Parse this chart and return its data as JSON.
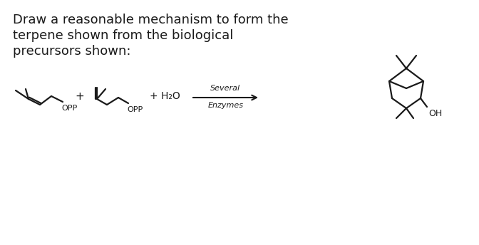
{
  "title_line1": "Draw a reasonable mechanism to form the",
  "title_line2": "terpene shown from the biological",
  "title_line3": "precursors shown:",
  "plus_sign": "+",
  "h2o_text": "+ H₂O",
  "arrow_label_top": "Several",
  "arrow_label_bottom": "Enzymes",
  "opp1_label": "OPP",
  "opp2_label": "OPP",
  "oh_label": "OH",
  "bg_color": "#ffffff",
  "text_color": "#1a1a1a",
  "line_color": "#1a1a1a",
  "font_size_title": 13,
  "font_size_label": 9,
  "font_size_opp": 8
}
